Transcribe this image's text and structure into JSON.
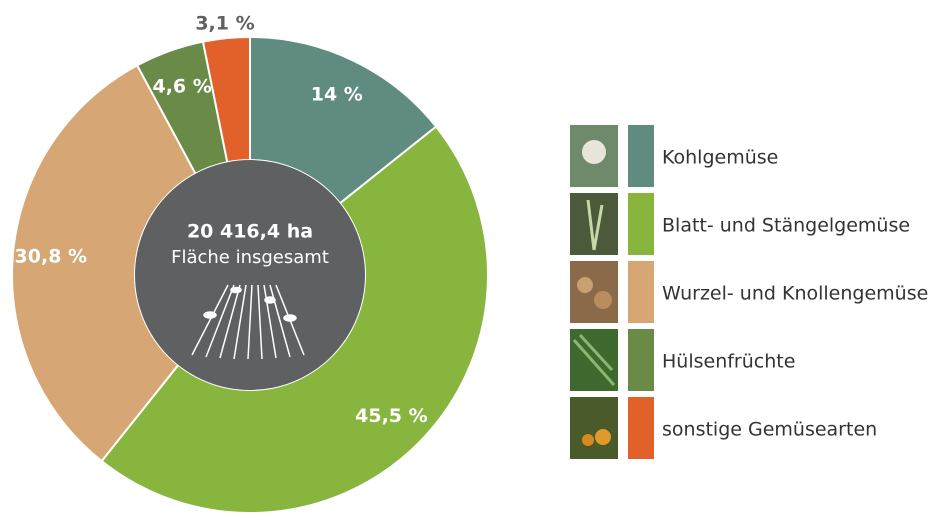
{
  "chart_data": {
    "type": "donut",
    "center_title": "20 416,4 ha",
    "center_subtitle": "Fläche insgesamt",
    "categories": [
      "Kohlgemüse",
      "Blatt- und Stängelgemüse",
      "Wurzel- und Knollengemüse",
      "Hülsenfrüchte",
      "sonstige Gemüsearten"
    ],
    "values": [
      14,
      45.5,
      30.8,
      4.6,
      3.1
    ],
    "value_labels": [
      "14 %",
      "45,5 %",
      "30,8 %",
      "4,6 %",
      "3,1 %"
    ],
    "colors": [
      "#5f8b80",
      "#87b53e",
      "#d6a674",
      "#6a8a48",
      "#e2612a"
    ]
  }
}
